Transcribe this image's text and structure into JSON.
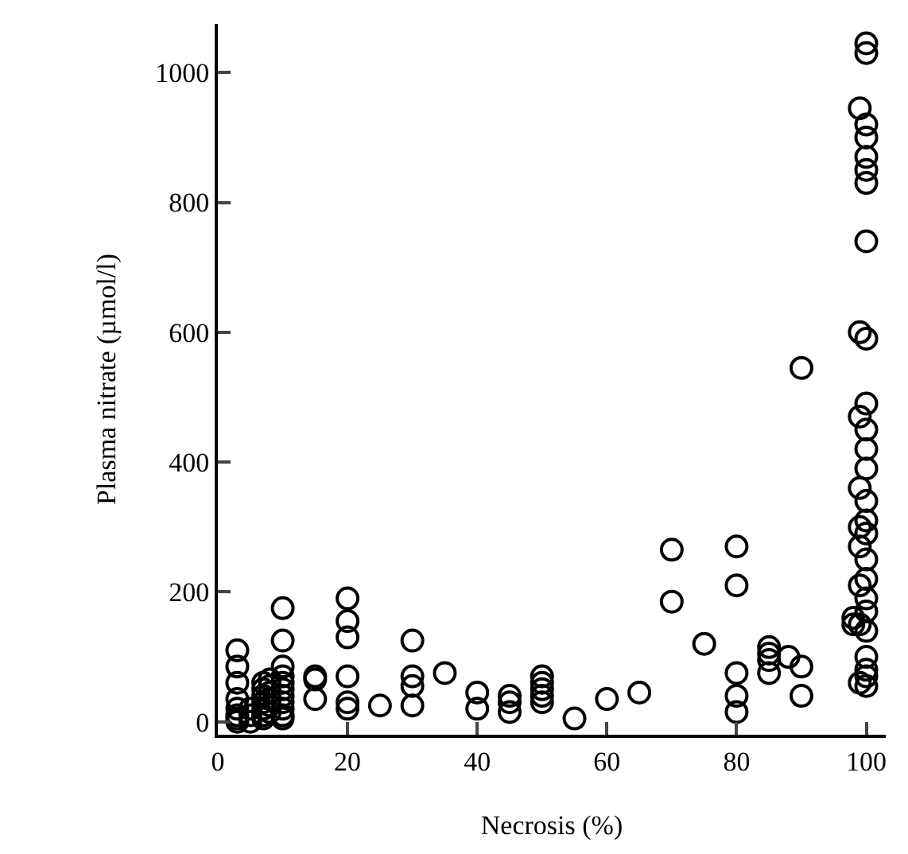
{
  "chart_data": {
    "type": "scatter",
    "xlabel": "Necrosis (%)",
    "ylabel": "Plasma nitrate (µmol/l)",
    "x": [
      3,
      3,
      3,
      3,
      3,
      3,
      3,
      3,
      5,
      5,
      5,
      7,
      7,
      7,
      7,
      7,
      7,
      7,
      8,
      8,
      8,
      8,
      8,
      8,
      10,
      10,
      10,
      10,
      10,
      10,
      10,
      10,
      10,
      10,
      10,
      15,
      15,
      15,
      20,
      20,
      20,
      20,
      20,
      20,
      25,
      30,
      30,
      30,
      30,
      35,
      40,
      40,
      45,
      45,
      45,
      50,
      50,
      50,
      50,
      50,
      55,
      60,
      65,
      70,
      70,
      75,
      80,
      80,
      80,
      80,
      80,
      85,
      85,
      85,
      85,
      88,
      90,
      90,
      90,
      98,
      98,
      99,
      99,
      99,
      99,
      99,
      99,
      99,
      99,
      99,
      100,
      100,
      100,
      100,
      100,
      100,
      100,
      100,
      100,
      100,
      100,
      100,
      100,
      100,
      100,
      100,
      100,
      100,
      100,
      100,
      100,
      100,
      100,
      100,
      100
    ],
    "series": [
      {
        "color": "#000000",
        "values": [
          110,
          85,
          60,
          35,
          20,
          10,
          5,
          0,
          10,
          0,
          20,
          60,
          50,
          40,
          30,
          20,
          10,
          5,
          65,
          55,
          45,
          35,
          25,
          15,
          175,
          125,
          85,
          70,
          60,
          50,
          40,
          30,
          20,
          10,
          5,
          70,
          65,
          35,
          190,
          155,
          130,
          70,
          30,
          20,
          25,
          125,
          70,
          55,
          25,
          75,
          45,
          20,
          40,
          30,
          15,
          70,
          60,
          50,
          40,
          30,
          5,
          35,
          45,
          265,
          185,
          120,
          270,
          210,
          75,
          40,
          15,
          115,
          105,
          95,
          75,
          100,
          545,
          85,
          40,
          160,
          150,
          945,
          600,
          470,
          360,
          300,
          270,
          210,
          150,
          60,
          1045,
          1030,
          920,
          900,
          870,
          850,
          830,
          740,
          590,
          490,
          450,
          420,
          390,
          340,
          310,
          290,
          250,
          220,
          190,
          170,
          140,
          100,
          80,
          70,
          55
        ]
      }
    ],
    "xlim": [
      0,
      103
    ],
    "ylim": [
      -20,
      1075
    ],
    "xticks": [
      0,
      20,
      40,
      60,
      80,
      100
    ],
    "yticks": [
      0,
      200,
      400,
      600,
      800,
      1000
    ],
    "marker": "circle",
    "grid": false,
    "legend": false
  }
}
